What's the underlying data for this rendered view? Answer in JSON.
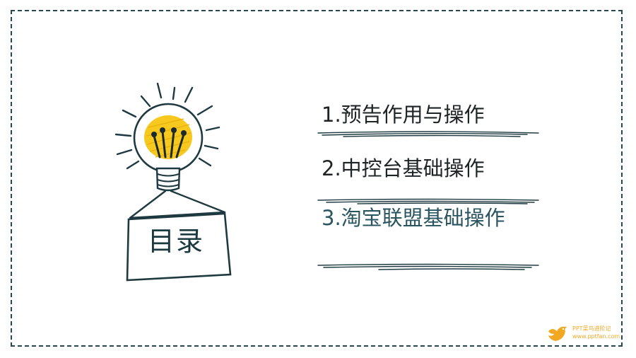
{
  "toc": {
    "title": "目录",
    "items": [
      {
        "label": "1.预告作用与操作"
      },
      {
        "label": "2.中控台基础操作"
      },
      {
        "label": "3.淘宝联盟基础操作"
      }
    ]
  },
  "icons": {
    "illustration": "lightbulb-icon",
    "watermark": "bird-logo-icon"
  },
  "colors": {
    "frame": "#27474f",
    "ink": "#1e2326",
    "active_item": "#2a5560",
    "bulb_fill": "#f7c81e",
    "watermark": "#f1a924"
  },
  "watermark": {
    "name": "PPT菜鸟进阶记",
    "url": "www.pptfan.com"
  }
}
